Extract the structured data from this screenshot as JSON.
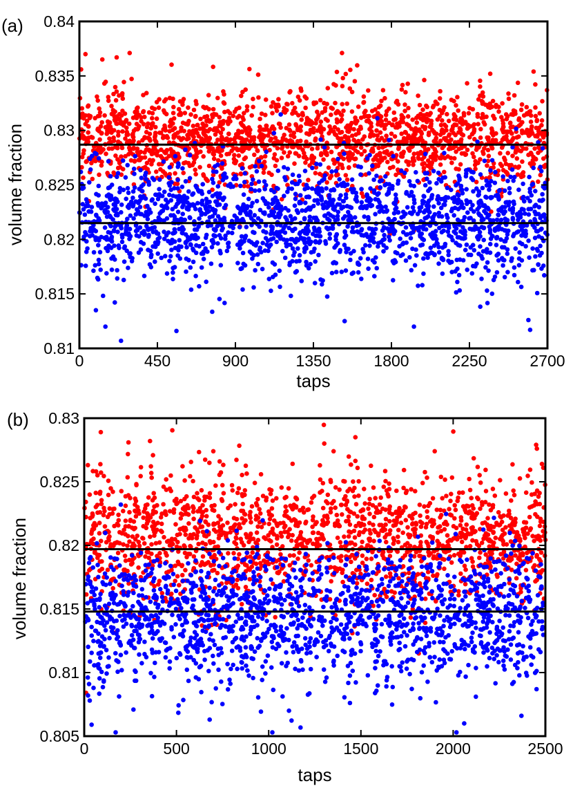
{
  "chart_data": [
    {
      "panel_label": "(a)",
      "type": "scatter",
      "xlabel": "taps",
      "ylabel": "volume fraction",
      "xlim": [
        0,
        2700
      ],
      "ylim": [
        0.81,
        0.84
      ],
      "xticks": [
        0,
        450,
        900,
        1350,
        1800,
        2250,
        2700
      ],
      "xtick_labels": [
        "0",
        "450",
        "900",
        "1350",
        "1800",
        "2250",
        "2700"
      ],
      "yticks": [
        0.81,
        0.815,
        0.82,
        0.825,
        0.83,
        0.835,
        0.84
      ],
      "ytick_labels": [
        "0.81",
        "0.815",
        "0.82",
        "0.825",
        "0.83",
        "0.835",
        "0.84"
      ],
      "grid": false,
      "hlines": [
        {
          "y": 0.8287,
          "color": "#000000"
        },
        {
          "y": 0.8215,
          "color": "#000000"
        }
      ],
      "series": [
        {
          "color": "#ff0000",
          "n_points": 1800,
          "x_range": [
            0,
            2700
          ],
          "mean": 0.8293,
          "sd": 0.0021,
          "extremes": [
            [
              35,
              0.837
            ],
            [
              215,
              0.8367
            ],
            [
              290,
              0.8371
            ],
            [
              1515,
              0.8371
            ],
            [
              1520,
              0.8348
            ],
            [
              2370,
              0.8352
            ],
            [
              2620,
              0.8354
            ],
            [
              10,
              0.8356
            ]
          ]
        },
        {
          "color": "#0000ff",
          "n_points": 1800,
          "x_range": [
            0,
            2700
          ],
          "mean": 0.8217,
          "sd": 0.0026,
          "extremes": [
            [
              240,
              0.8107
            ],
            [
              150,
              0.812
            ],
            [
              560,
              0.8116
            ],
            [
              1930,
              0.812
            ],
            [
              2600,
              0.8117
            ],
            [
              2590,
              0.8126
            ],
            [
              1530,
              0.8125
            ],
            [
              95,
              0.8135
            ]
          ]
        }
      ]
    },
    {
      "panel_label": "(b)",
      "type": "scatter",
      "xlabel": "taps",
      "ylabel": "volume fraction",
      "xlim": [
        0,
        2500
      ],
      "ylim": [
        0.805,
        0.83
      ],
      "xticks": [
        0,
        500,
        1000,
        1500,
        2000,
        2500
      ],
      "xtick_labels": [
        "0",
        "500",
        "1000",
        "1500",
        "2000",
        "2500"
      ],
      "yticks": [
        0.805,
        0.81,
        0.815,
        0.82,
        0.825,
        0.83
      ],
      "ytick_labels": [
        "0.805",
        "0.81",
        "0.815",
        "0.82",
        "0.825",
        "0.83"
      ],
      "grid": false,
      "hlines": [
        {
          "y": 0.8197,
          "color": "#000000"
        },
        {
          "y": 0.8148,
          "color": "#000000"
        }
      ],
      "series": [
        {
          "color": "#ff0000",
          "n_points": 1700,
          "x_range": [
            0,
            2500
          ],
          "mean": 0.8205,
          "sd": 0.0026,
          "extremes": [
            [
              90,
              0.8289
            ],
            [
              240,
              0.8281
            ],
            [
              1470,
              0.8285
            ],
            [
              2450,
              0.8279
            ],
            [
              10,
              0.8084
            ],
            [
              700,
              0.8274
            ],
            [
              1900,
              0.8274
            ]
          ]
        },
        {
          "color": "#0000ff",
          "n_points": 1700,
          "x_range": [
            0,
            2500
          ],
          "mean": 0.8145,
          "sd": 0.0027,
          "extremes": [
            [
              40,
              0.8059
            ],
            [
              1020,
              0.8053
            ],
            [
              2060,
              0.806
            ],
            [
              680,
              0.8063
            ],
            [
              2370,
              0.8066
            ],
            [
              30,
              0.8078
            ],
            [
              1110,
              0.807
            ]
          ]
        }
      ]
    }
  ]
}
